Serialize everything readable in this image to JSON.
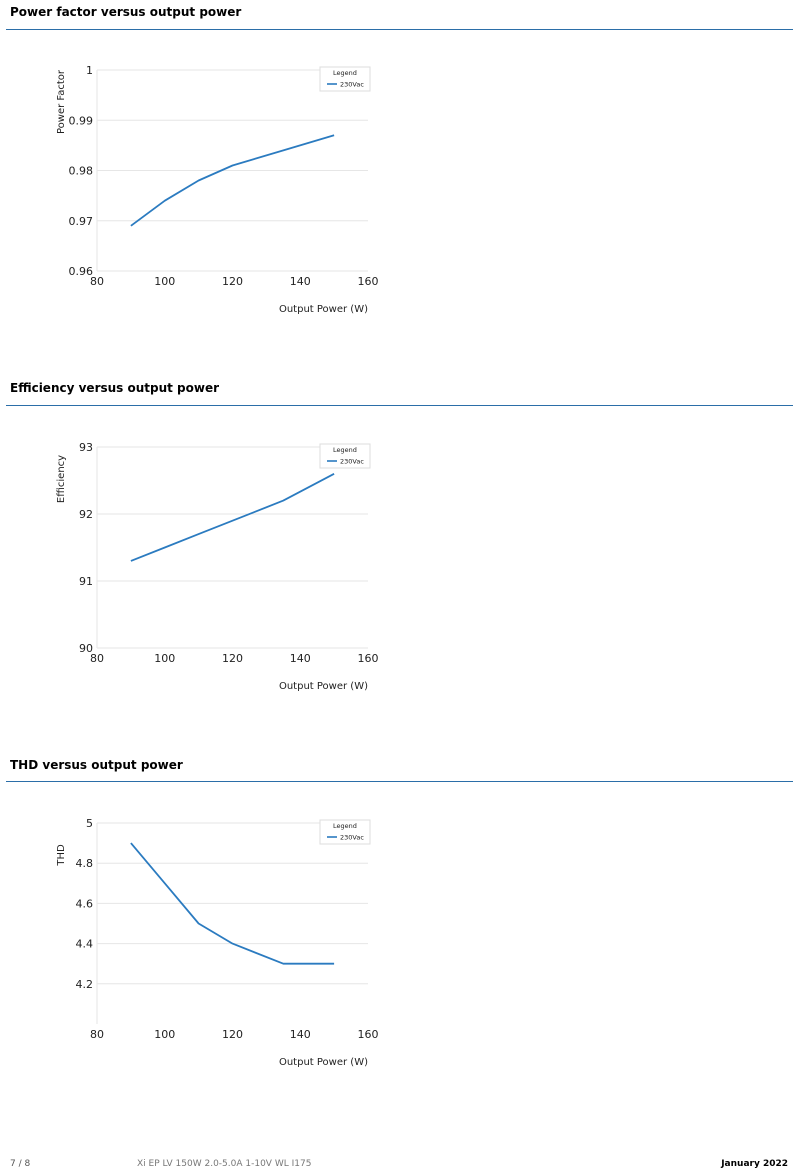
{
  "sections": [
    {
      "title": "Power factor versus output power"
    },
    {
      "title": "Efficiency versus output power"
    },
    {
      "title": "THD versus output power"
    }
  ],
  "chart_data": [
    {
      "type": "line",
      "xlabel": "Output Power (W)",
      "ylabel": "Power Factor",
      "xlim": [
        80,
        160
      ],
      "ylim": [
        0.96,
        1
      ],
      "xticks": [
        80,
        100,
        120,
        140,
        160
      ],
      "yticks": [
        0.96,
        0.97,
        0.98,
        0.99,
        1
      ],
      "ytick_labels": [
        "0.96",
        "0.97",
        "0.98",
        "0.99",
        "1"
      ],
      "grid": true,
      "legend_title": "Legend",
      "legend_position": "top-right",
      "series": [
        {
          "name": "230Vac",
          "color": "#2b7bc0",
          "x": [
            90,
            100,
            110,
            120,
            135,
            150
          ],
          "y": [
            0.969,
            0.974,
            0.978,
            0.981,
            0.984,
            0.987
          ]
        }
      ]
    },
    {
      "type": "line",
      "xlabel": "Output Power (W)",
      "ylabel": "Efficiency",
      "xlim": [
        80,
        160
      ],
      "ylim": [
        90,
        93
      ],
      "xticks": [
        80,
        100,
        120,
        140,
        160
      ],
      "yticks": [
        90,
        91,
        92,
        93
      ],
      "ytick_labels": [
        "90",
        "91",
        "92",
        "93"
      ],
      "grid": true,
      "legend_title": "Legend",
      "legend_position": "top-right",
      "series": [
        {
          "name": "230Vac",
          "color": "#2b7bc0",
          "x": [
            90,
            100,
            110,
            120,
            135,
            150
          ],
          "y": [
            91.3,
            91.5,
            91.7,
            91.9,
            92.2,
            92.6
          ]
        }
      ]
    },
    {
      "type": "line",
      "xlabel": "Output Power (W)",
      "ylabel": "THD",
      "xlim": [
        80,
        160
      ],
      "ylim": [
        4,
        5
      ],
      "xticks": [
        80,
        100,
        120,
        140,
        160
      ],
      "yticks": [
        4.2,
        4.4,
        4.6,
        4.8,
        5
      ],
      "ytick_labels": [
        "4.2",
        "4.4",
        "4.6",
        "4.8",
        "5"
      ],
      "grid": true,
      "legend_title": "Legend",
      "legend_position": "top-right",
      "series": [
        {
          "name": "230Vac",
          "color": "#2b7bc0",
          "x": [
            90,
            100,
            110,
            120,
            135,
            150
          ],
          "y": [
            4.9,
            4.7,
            4.5,
            4.4,
            4.3,
            4.3
          ]
        }
      ]
    }
  ],
  "footer": {
    "page": "7 / 8",
    "product": "Xi EP LV 150W 2.0-5.0A 1-10V WL I175",
    "date": "January 2022"
  }
}
